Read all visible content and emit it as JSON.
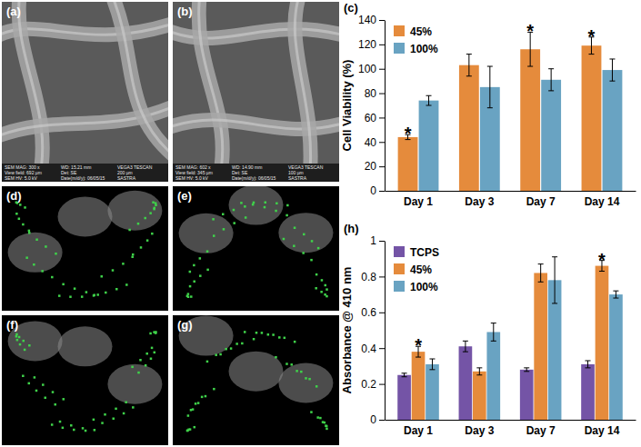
{
  "chart_data": [
    {
      "type": "bar",
      "panel_label": "(c)",
      "y_label": "Cell Viability (%)",
      "categories": [
        "Day 1",
        "Day 3",
        "Day 7",
        "Day 14"
      ],
      "series": [
        {
          "name": "45%",
          "color": "#e58b3c",
          "values": [
            44,
            103,
            116,
            119
          ],
          "errors": [
            2,
            9,
            14,
            7
          ]
        },
        {
          "name": "100%",
          "color": "#69a3c2",
          "values": [
            74,
            85,
            91,
            99
          ],
          "errors": [
            4,
            17,
            9,
            9
          ]
        }
      ],
      "ylim": [
        0,
        140
      ],
      "yticks": [
        0,
        20,
        40,
        60,
        80,
        100,
        120,
        140
      ],
      "legend": "upper left",
      "annotations": [
        {
          "text": "*",
          "category": "Day 1",
          "series": "45%"
        },
        {
          "text": "*",
          "category": "Day 7",
          "series": "45%"
        },
        {
          "text": "*",
          "category": "Day 14",
          "series": "45%"
        }
      ]
    },
    {
      "type": "bar",
      "panel_label": "(h)",
      "y_label": "Absorbance @ 410 nm",
      "categories": [
        "Day 1",
        "Day 3",
        "Day 7",
        "Day 14"
      ],
      "series": [
        {
          "name": "TCPS",
          "color": "#7454a6",
          "values": [
            0.25,
            0.41,
            0.28,
            0.31
          ],
          "errors": [
            0.01,
            0.03,
            0.01,
            0.02
          ]
        },
        {
          "name": "45%",
          "color": "#e58b3c",
          "values": [
            0.38,
            0.27,
            0.82,
            0.86
          ],
          "errors": [
            0.03,
            0.02,
            0.05,
            0.03
          ]
        },
        {
          "name": "100%",
          "color": "#69a3c2",
          "values": [
            0.31,
            0.49,
            0.78,
            0.7
          ],
          "errors": [
            0.03,
            0.05,
            0.13,
            0.02
          ]
        }
      ],
      "ylim": [
        0,
        1
      ],
      "yticks": [
        0,
        0.2,
        0.4,
        0.6,
        0.8,
        1
      ],
      "legend": "upper left",
      "annotations": [
        {
          "text": "*",
          "category": "Day 1",
          "series": "45%"
        },
        {
          "text": "*",
          "category": "Day 14",
          "series": "45%"
        }
      ]
    }
  ],
  "panels": [
    {
      "label": "(a)",
      "kind": "sem",
      "info": [
        "SEM MAG: 300 x",
        "WD: 15.21 mm",
        "VEGA3 TESCAN",
        "View field: 692 µm",
        "Det: SE",
        "200 µm",
        "SEM HV: 5.0 kV",
        "Date(m/d/y): 06/05/15",
        "SASTRA"
      ]
    },
    {
      "label": "(b)",
      "kind": "sem",
      "info": [
        "SEM MAG: 602 x",
        "WD: 14.90 mm",
        "VEGA3 TESCAN",
        "View field: 345 µm",
        "Det: SE",
        "100 µm",
        "SEM HV: 5.0 kV",
        "Date(m/d/y): 06/05/15",
        "SASTRA"
      ]
    },
    {
      "label": "(d)",
      "kind": "confocal"
    },
    {
      "label": "(e)",
      "kind": "confocal"
    },
    {
      "label": "(f)",
      "kind": "confocal"
    },
    {
      "label": "(g)",
      "kind": "confocal"
    }
  ]
}
